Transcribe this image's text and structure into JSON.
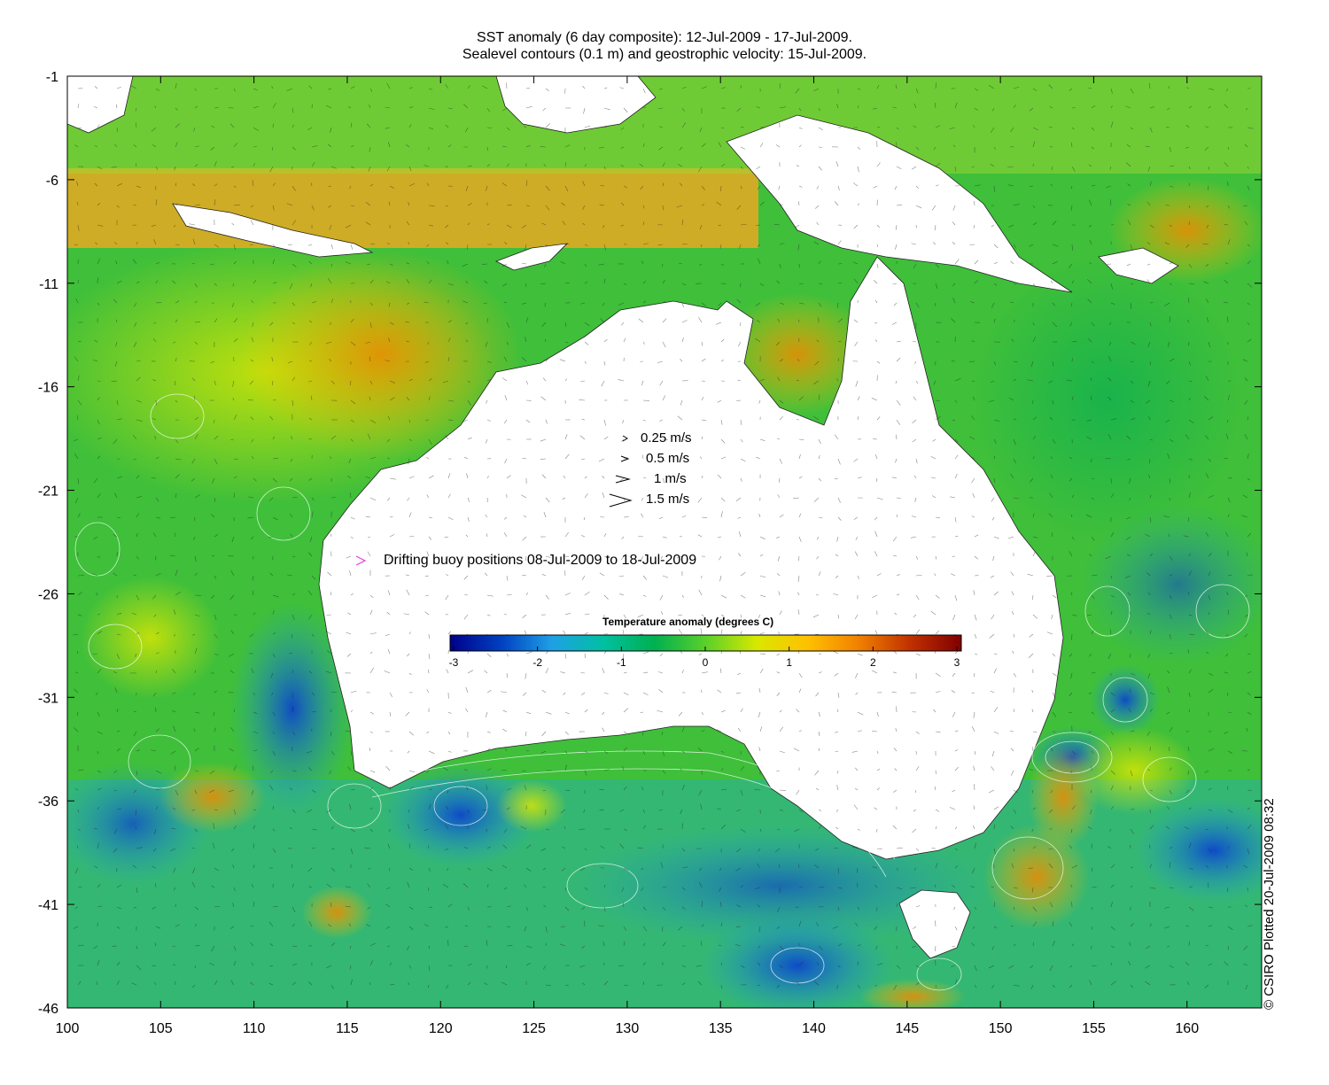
{
  "title_line1": "SST anomaly (6 day composite): 12-Jul-2009 - 17-Jul-2009.",
  "title_line2": "Sealevel contours (0.1 m) and geostrophic velocity: 15-Jul-2009.",
  "x_axis": {
    "ticks": [
      100,
      105,
      110,
      115,
      120,
      125,
      130,
      135,
      140,
      145,
      150,
      155,
      160
    ],
    "range": [
      100,
      164
    ]
  },
  "y_axis": {
    "ticks": [
      -1,
      -6,
      -11,
      -16,
      -21,
      -26,
      -31,
      -36,
      -41,
      -46
    ],
    "range": [
      -46,
      -1
    ]
  },
  "velocity_legend": [
    {
      "label": "0.25 m/s"
    },
    {
      "label": "0.5 m/s"
    },
    {
      "label": "1 m/s"
    },
    {
      "label": "1.5 m/s"
    }
  ],
  "buoy_legend": {
    "label": "Drifting buoy positions 08-Jul-2009 to 18-Jul-2009",
    "color": "#e040e0"
  },
  "colorbar": {
    "title": "Temperature anomaly (degrees C)",
    "ticks": [
      -3,
      -2,
      -1,
      0,
      1,
      2,
      3
    ],
    "colors": [
      "#00008a",
      "#0040c0",
      "#1fa0e6",
      "#00c0a0",
      "#00b050",
      "#5ad02a",
      "#d8e800",
      "#ffc000",
      "#f08000",
      "#c03000",
      "#800000"
    ]
  },
  "copyright": "© CSIRO Plotted 20-Jul-2009 08:32"
}
